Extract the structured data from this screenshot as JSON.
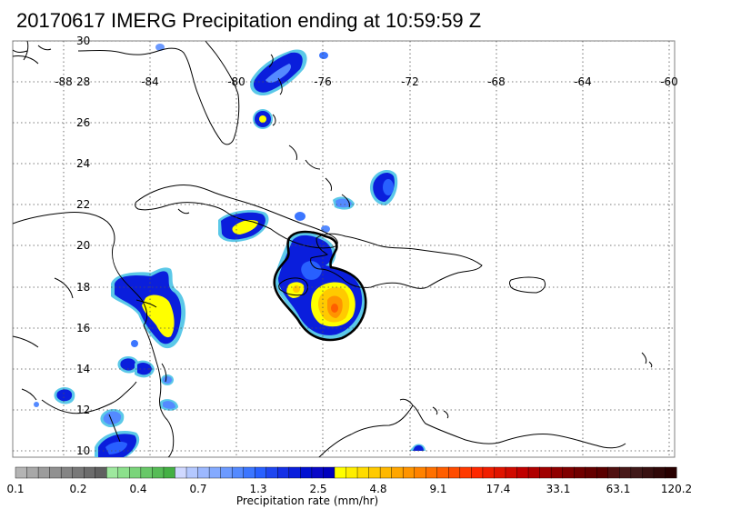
{
  "title": "20170617 IMERG Precipitation ending at 10:59:59 Z",
  "map": {
    "lon_range": [
      -90,
      -59.2
    ],
    "lat_range": [
      9.6,
      30
    ],
    "lon_ticks": [
      "-88",
      "-84",
      "-80",
      "-76",
      "-72",
      "-68",
      "-64",
      "-60"
    ],
    "lat_ticks": [
      "30",
      "28",
      "26",
      "24",
      "22",
      "20",
      "18",
      "16",
      "14",
      "12",
      "10"
    ],
    "grid": "dotted"
  },
  "colorbar": {
    "title": "Precipitation rate (mm/hr)",
    "labels": [
      "0.1",
      "0.2",
      "0.4",
      "0.7",
      "1.3",
      "2.5",
      "4.8",
      "9.1",
      "17.4",
      "33.1",
      "63.1",
      "120.2"
    ],
    "colors": [
      "#b4b4b4",
      "#a8a8a8",
      "#9c9c9c",
      "#909090",
      "#848484",
      "#787878",
      "#6c6c6c",
      "#606060",
      "#9ee89e",
      "#8ce08c",
      "#7ad47a",
      "#68c868",
      "#56bc56",
      "#44b044",
      "#cfd8ff",
      "#b4c8ff",
      "#9cb8ff",
      "#84aaff",
      "#6c9aff",
      "#548aff",
      "#3c76ff",
      "#2860ff",
      "#1e46f0",
      "#1430e6",
      "#0a1edc",
      "#0010d2",
      "#0808c8",
      "#0000be",
      "#ffff00",
      "#ffee00",
      "#ffdc00",
      "#ffca00",
      "#ffb800",
      "#ffa600",
      "#ff9400",
      "#ff8200",
      "#ff7000",
      "#ff5e00",
      "#ff4c00",
      "#ff3a00",
      "#ff2800",
      "#f01e00",
      "#e01400",
      "#d00a00",
      "#c00000",
      "#b00000",
      "#a00000",
      "#900000",
      "#800000",
      "#700000",
      "#640000",
      "#5a0000",
      "#501010",
      "#481818",
      "#401818",
      "#381010",
      "#300808",
      "#280000"
    ]
  },
  "colors": {
    "coast": "#000000",
    "frame": "#808080",
    "grid": "#505050",
    "ring": "#5bc8e8"
  }
}
